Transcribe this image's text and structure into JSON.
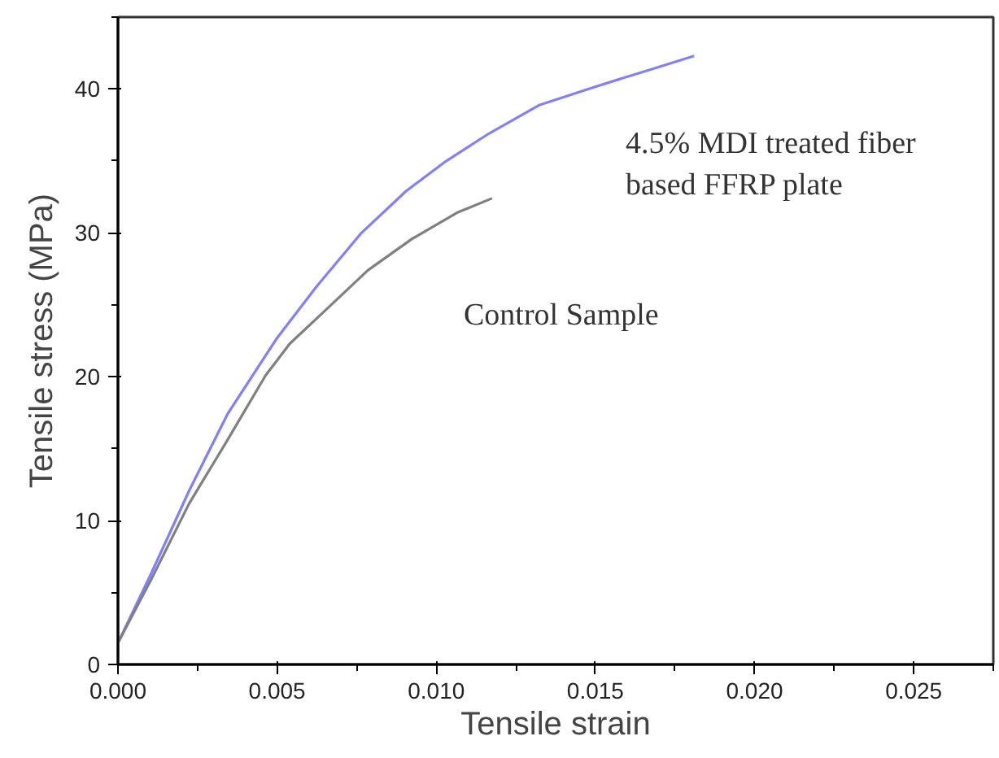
{
  "chart_data": {
    "type": "line",
    "xlabel": "Tensile strain",
    "ylabel": "Tensile stress (MPa)",
    "xlim": [
      0,
      0.0275
    ],
    "ylim": [
      0,
      45
    ],
    "xticks": [
      {
        "value": 0,
        "label": "0.000"
      },
      {
        "value": 0.005,
        "label": "0.005"
      },
      {
        "value": 0.01,
        "label": "0.010"
      },
      {
        "value": 0.015,
        "label": "0.015"
      },
      {
        "value": 0.02,
        "label": "0.020"
      },
      {
        "value": 0.025,
        "label": "0.025"
      }
    ],
    "yticks": [
      0,
      10,
      20,
      30,
      40
    ],
    "series": [
      {
        "name": "4.5% MDI treated fiber\nbased FFRP plate",
        "color": "#8080ff",
        "x": [
          0,
          0.00104,
          0.00224,
          0.00344,
          0.005,
          0.00625,
          0.00765,
          0.00905,
          0.01025,
          0.01165,
          0.01325,
          0.01505,
          0.01665,
          0.0181
        ],
        "values": [
          1.5,
          6.3,
          12.1,
          17.4,
          22.7,
          26.3,
          30.0,
          32.9,
          34.9,
          36.9,
          38.9,
          40.2,
          41.3,
          42.3
        ]
      },
      {
        "name": "Control Sample",
        "color": "#808080",
        "x": [
          0,
          0.00104,
          0.00224,
          0.00344,
          0.00464,
          0.0054,
          0.00665,
          0.00785,
          0.00925,
          0.01065,
          0.01175
        ],
        "values": [
          1.5,
          5.9,
          11.2,
          15.6,
          20.1,
          22.3,
          24.9,
          27.4,
          29.6,
          31.4,
          32.4
        ]
      }
    ]
  }
}
